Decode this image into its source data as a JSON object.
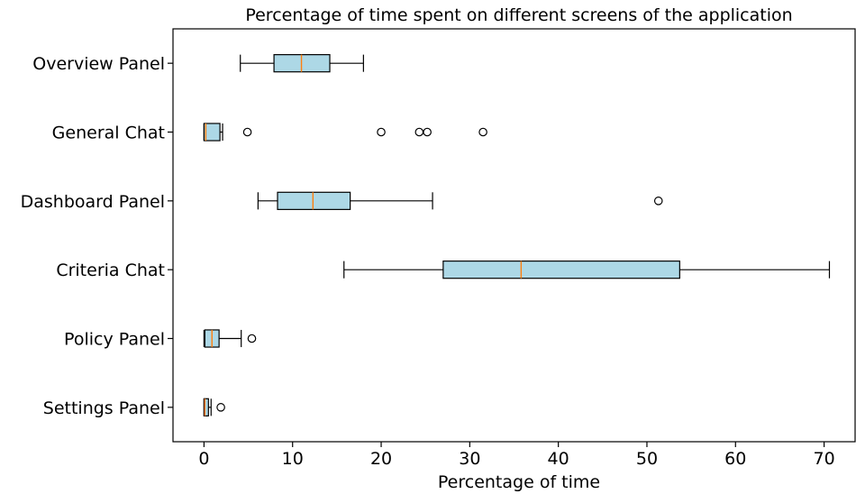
{
  "chart_data": {
    "type": "boxplot",
    "orientation": "horizontal",
    "title": "Percentage of time spent on different screens of the application",
    "xlabel": "Percentage of time",
    "ylabel": "",
    "xlim": [
      -3.5,
      73.5
    ],
    "xticks": [
      0,
      10,
      20,
      30,
      40,
      50,
      60,
      70
    ],
    "grid": false,
    "colors": {
      "box_fill": "#add8e6",
      "median": "#ff7f0e",
      "edge": "#000000"
    },
    "categories": [
      "Overview Panel",
      "General Chat",
      "Dashboard Panel",
      "Criteria Chat",
      "Policy Panel",
      "Settings Panel"
    ],
    "boxes": [
      {
        "label": "Overview Panel",
        "whisker_low": 4.1,
        "q1": 7.9,
        "median": 11.0,
        "q3": 14.2,
        "whisker_high": 18.0,
        "outliers": []
      },
      {
        "label": "General Chat",
        "whisker_low": 0.0,
        "q1": 0.0,
        "median": 0.2,
        "q3": 1.8,
        "whisker_high": 2.1,
        "outliers": [
          4.9,
          20.0,
          24.3,
          25.2,
          31.5
        ]
      },
      {
        "label": "Dashboard Panel",
        "whisker_low": 6.1,
        "q1": 8.3,
        "median": 12.3,
        "q3": 16.5,
        "whisker_high": 25.8,
        "outliers": [
          51.3
        ]
      },
      {
        "label": "Criteria Chat",
        "whisker_low": 15.8,
        "q1": 27.0,
        "median": 35.8,
        "q3": 53.7,
        "whisker_high": 70.6,
        "outliers": []
      },
      {
        "label": "Policy Panel",
        "whisker_low": 0.0,
        "q1": 0.1,
        "median": 0.9,
        "q3": 1.7,
        "whisker_high": 4.2,
        "outliers": [
          5.4
        ]
      },
      {
        "label": "Settings Panel",
        "whisker_low": 0.0,
        "q1": 0.0,
        "median": 0.1,
        "q3": 0.5,
        "whisker_high": 0.8,
        "outliers": [
          1.9
        ]
      }
    ]
  }
}
